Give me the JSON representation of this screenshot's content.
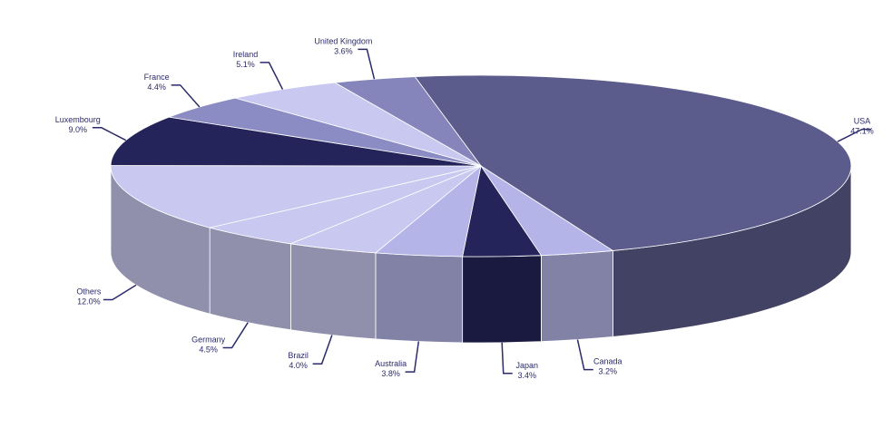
{
  "chart_data": {
    "type": "pie",
    "style": "3d",
    "title": "",
    "slices": [
      {
        "label": "USA",
        "value": 47.1,
        "display": "47.1%",
        "color": "#5b5b8c"
      },
      {
        "label": "Canada",
        "value": 3.2,
        "display": "3.2%",
        "color": "#b4b4e8"
      },
      {
        "label": "Japan",
        "value": 3.4,
        "display": "3.4%",
        "color": "#24245a"
      },
      {
        "label": "Australia",
        "value": 3.8,
        "display": "3.8%",
        "color": "#b4b4e8"
      },
      {
        "label": "Brazil",
        "value": 4.0,
        "display": "4.0%",
        "color": "#c8c8f0"
      },
      {
        "label": "Germany",
        "value": 4.5,
        "display": "4.5%",
        "color": "#c8c8f0"
      },
      {
        "label": "Others",
        "value": 12.0,
        "display": "12.0%",
        "color": "#c8c8f0"
      },
      {
        "label": "Luxembourg",
        "value": 9.0,
        "display": "9.0%",
        "color": "#24245a"
      },
      {
        "label": "France",
        "value": 4.4,
        "display": "4.4%",
        "color": "#8c8cc4"
      },
      {
        "label": "Ireland",
        "value": 5.1,
        "display": "5.1%",
        "color": "#c8c8f0"
      },
      {
        "label": "United Kingdom",
        "value": 3.6,
        "display": "3.6%",
        "color": "#8585bc"
      }
    ]
  }
}
